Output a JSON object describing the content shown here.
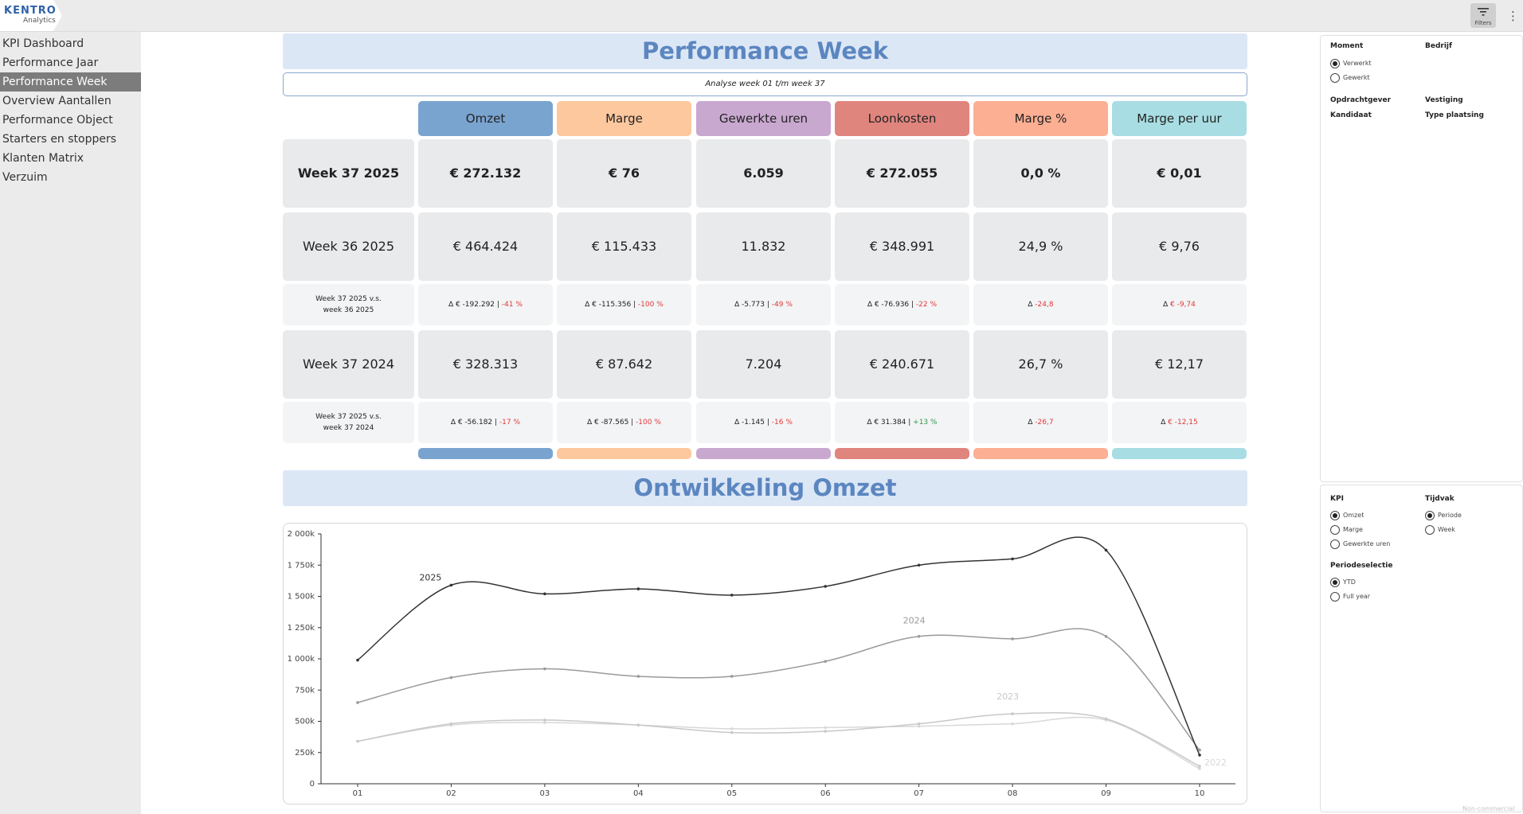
{
  "app": {
    "logo_title": "KENTRO",
    "logo_subtitle": "Analytics",
    "filters_label": "Filters",
    "watermark": "Non-commercial"
  },
  "sidebar": {
    "items": [
      {
        "label": "KPI Dashboard",
        "active": false
      },
      {
        "label": "Performance Jaar",
        "active": false
      },
      {
        "label": "Performance Week",
        "active": true
      },
      {
        "label": "Overview Aantallen",
        "active": false
      },
      {
        "label": "Performance Object",
        "active": false
      },
      {
        "label": "Starters en stoppers",
        "active": false
      },
      {
        "label": "Klanten Matrix",
        "active": false
      },
      {
        "label": "Verzuim",
        "active": false
      }
    ]
  },
  "main": {
    "title": "Performance Week",
    "analyse": "Analyse week 01 t/m week 37",
    "columns": [
      {
        "label": "Omzet",
        "color": "#7aa4d0"
      },
      {
        "label": "Marge",
        "color": "#fec89e"
      },
      {
        "label": "Gewerkte uren",
        "color": "#c9a8d0"
      },
      {
        "label": "Loonkosten",
        "color": "#e0857e"
      },
      {
        "label": "Marge %",
        "color": "#fcaf93"
      },
      {
        "label": "Marge per uur",
        "color": "#a8dde3"
      }
    ],
    "row_current": {
      "label": "Week 37 2025",
      "values": [
        "€ 272.132",
        "€ 76",
        "6.059",
        "€ 272.055",
        "0,0 %",
        "€ 0,01"
      ]
    },
    "row_prev_week": {
      "label": "Week 36 2025",
      "values": [
        "€ 464.424",
        "€ 115.433",
        "11.832",
        "€ 348.991",
        "24,9 %",
        "€ 9,76"
      ]
    },
    "row_cmp_week": {
      "label_1": "Week 37 2025 v.s.",
      "label_2": "week 36 2025",
      "cells": [
        {
          "delta": "∆ € -192.292 | ",
          "pct": "-41 %",
          "tone": "neg"
        },
        {
          "delta": "∆ € -115.356 | ",
          "pct": "-100 %",
          "tone": "neg"
        },
        {
          "delta": "∆ -5.773 | ",
          "pct": "-49 %",
          "tone": "neg"
        },
        {
          "delta": "∆ € -76.936 | ",
          "pct": "-22 %",
          "tone": "neg"
        },
        {
          "delta": "∆ ",
          "pct": "-24,8",
          "tone": "neg"
        },
        {
          "delta": "∆ ",
          "pct": "€ -9,74",
          "tone": "neg"
        }
      ]
    },
    "row_prev_year": {
      "label": "Week 37 2024",
      "values": [
        "€ 328.313",
        "€ 87.642",
        "7.204",
        "€ 240.671",
        "26,7 %",
        "€ 12,17"
      ]
    },
    "row_cmp_year": {
      "label_1": "Week 37 2025 v.s.",
      "label_2": "week 37 2024",
      "cells": [
        {
          "delta": "∆ € -56.182 | ",
          "pct": "-17 %",
          "tone": "neg"
        },
        {
          "delta": "∆ € -87.565 | ",
          "pct": "-100 %",
          "tone": "neg"
        },
        {
          "delta": "∆ -1.145 | ",
          "pct": "-16 %",
          "tone": "neg"
        },
        {
          "delta": "∆ € 31.384 | ",
          "pct": "+13 %",
          "tone": "pos"
        },
        {
          "delta": "∆ ",
          "pct": "-26,7",
          "tone": "neg"
        },
        {
          "delta": "∆ ",
          "pct": "€ -12,15",
          "tone": "neg"
        }
      ]
    },
    "chart_title": "Ontwikkeling Omzet"
  },
  "chart_data": {
    "type": "line",
    "title": "Ontwikkeling Omzet",
    "xlabel": "",
    "ylabel": "",
    "x": [
      "01",
      "02",
      "03",
      "04",
      "05",
      "06",
      "07",
      "08",
      "09",
      "10"
    ],
    "y_ticks": [
      "0",
      "250k",
      "500k",
      "750k",
      "1 000k",
      "1 250k",
      "1 500k",
      "1 750k",
      "2 000k"
    ],
    "ylim": [
      0,
      2000000
    ],
    "grid": false,
    "series": [
      {
        "name": "2025",
        "color": "#333333",
        "values": [
          990000,
          1590000,
          1520000,
          1560000,
          1510000,
          1580000,
          1750000,
          1800000,
          1870000,
          230000
        ]
      },
      {
        "name": "2024",
        "color": "#9a9a9a",
        "values": [
          650000,
          850000,
          920000,
          860000,
          860000,
          980000,
          1180000,
          1160000,
          1180000,
          270000
        ]
      },
      {
        "name": "2023",
        "color": "#c8c8c8",
        "values": [
          340000,
          480000,
          510000,
          470000,
          410000,
          420000,
          480000,
          560000,
          520000,
          140000
        ]
      },
      {
        "name": "2022",
        "color": "#d8d8d8",
        "values": [
          340000,
          470000,
          490000,
          470000,
          440000,
          450000,
          460000,
          480000,
          510000,
          120000
        ]
      }
    ]
  },
  "filters": {
    "moment_title": "Moment",
    "moment_options": [
      {
        "label": "Verwerkt",
        "checked": true
      },
      {
        "label": "Gewerkt",
        "checked": false
      }
    ],
    "bedrijf": "Bedrijf",
    "opdrachtgever": "Opdrachtgever",
    "vestiging": "Vestiging",
    "kandidaat": "Kandidaat",
    "type_plaatsing": "Type plaatsing"
  },
  "options": {
    "kpi_title": "KPI",
    "kpi_options": [
      {
        "label": "Omzet",
        "checked": true
      },
      {
        "label": "Marge",
        "checked": false
      },
      {
        "label": "Gewerkte uren",
        "checked": false
      }
    ],
    "tijdvak_title": "Tijdvak",
    "tijdvak_options": [
      {
        "label": "Periode",
        "checked": true
      },
      {
        "label": "Week",
        "checked": false
      }
    ],
    "periode_title": "Periodeselectie",
    "periode_options": [
      {
        "label": "YTD",
        "checked": true
      },
      {
        "label": "Full year",
        "checked": false
      }
    ]
  }
}
